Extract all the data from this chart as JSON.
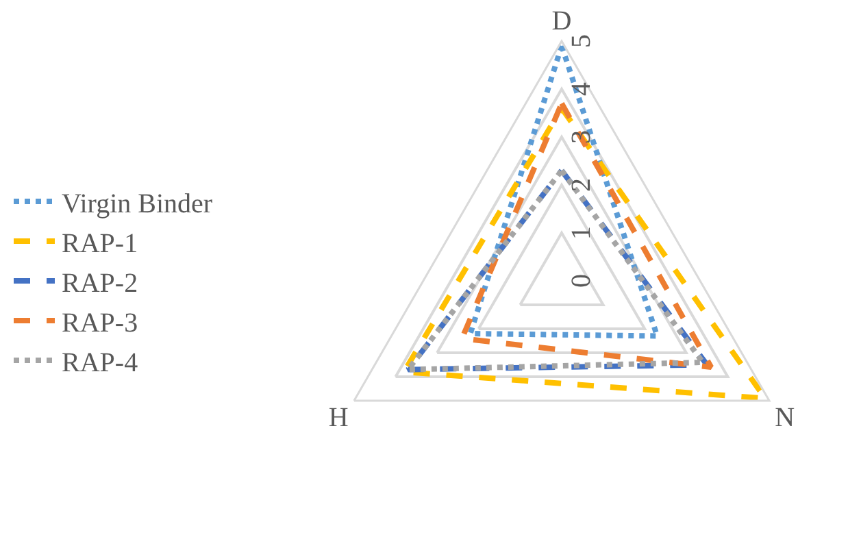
{
  "chart_data": {
    "type": "radar",
    "categories": [
      "D",
      "N",
      "H"
    ],
    "ylim": [
      0,
      5
    ],
    "yticks": [
      0,
      1,
      2,
      3,
      4,
      5
    ],
    "grid": true,
    "legend": "left",
    "marker": "none",
    "series": [
      {
        "name": "Virgin Binder",
        "color": "#5b9bd5",
        "line_style": "dotted",
        "values": [
          4.9,
          2.3,
          2.2
        ]
      },
      {
        "name": "RAP-1",
        "color": "#ffc000",
        "line_style": "dashed",
        "values": [
          3.6,
          4.9,
          3.8
        ]
      },
      {
        "name": "RAP-2",
        "color": "#4472c4",
        "line_style": "dashed",
        "values": [
          2.3,
          3.5,
          3.7
        ]
      },
      {
        "name": "RAP-3",
        "color": "#ed7d31",
        "line_style": "dashed",
        "values": [
          3.7,
          3.6,
          2.4
        ]
      },
      {
        "name": "RAP-4",
        "color": "#a5a5a5",
        "line_style": "dotted",
        "values": [
          2.3,
          3.4,
          3.7
        ]
      }
    ]
  }
}
